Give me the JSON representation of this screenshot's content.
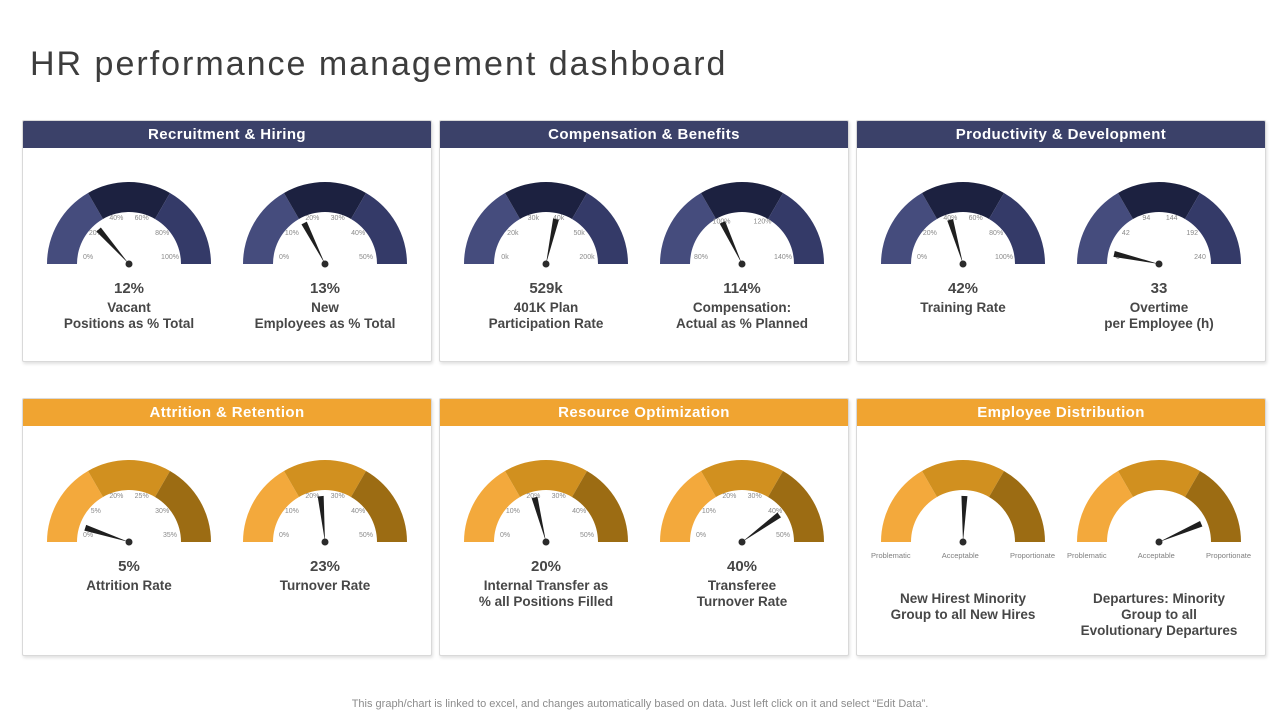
{
  "title": "HR performance management dashboard",
  "footer": "This graph/chart is linked to excel, and changes automatically based on data. Just left click on it and select “Edit Data”.",
  "colors": {
    "blue_header": "#3B4169",
    "orange_header": "#F0A431",
    "blue_segments": [
      "#454C7D",
      "#1C2140",
      "#343A68"
    ],
    "orange_segments": [
      "#F3A93C",
      "#D1901F",
      "#9C6C13"
    ],
    "needle": "#1F1F1F",
    "tick_text": "#8A8A8A",
    "value_text": "#474747"
  },
  "chart_data": {
    "type": "gauge",
    "layout": "2 rows x 3 panels, each panel has 2 semicircular gauges with 3 equal colored segments",
    "panels": [
      {
        "id": "recruitment-hiring",
        "title": "Recruitment & Hiring",
        "theme": "blue",
        "gauges": [
          {
            "ticks": [
              "0%",
              "20%",
              "40%",
              "60%",
              "80%",
              "100%"
            ],
            "value": "12%",
            "needle_fraction": 0.27,
            "label_lines": [
              "Vacant",
              "Positions as % Total"
            ]
          },
          {
            "ticks": [
              "0%",
              "10%",
              "20%",
              "30%",
              "40%",
              "50%"
            ],
            "value": "13%",
            "needle_fraction": 0.35,
            "label_lines": [
              "New",
              "Employees as % Total"
            ]
          }
        ]
      },
      {
        "id": "compensation-benefits",
        "title": "Compensation & Benefits",
        "theme": "blue",
        "gauges": [
          {
            "ticks": [
              "0k",
              "20k",
              "30k",
              "40k",
              "50k",
              "200k"
            ],
            "value": "529k",
            "needle_fraction": 0.57,
            "label_lines": [
              "401K Plan",
              "Participation Rate"
            ]
          },
          {
            "ticks": [
              "80%",
              "100%",
              "120%",
              "140%"
            ],
            "value": "114%",
            "needle_fraction": 0.36,
            "label_lines": [
              "Compensation:",
              "Actual as % Planned"
            ]
          }
        ]
      },
      {
        "id": "productivity-development",
        "title": "Productivity & Development",
        "theme": "blue",
        "gauges": [
          {
            "ticks": [
              "0%",
              "20%",
              "40%",
              "60%",
              "80%",
              "100%"
            ],
            "value": "42%",
            "needle_fraction": 0.41,
            "label_lines": [
              "Training Rate"
            ]
          },
          {
            "ticks": [
              "0",
              "42",
              "94",
              "144",
              "192",
              "240"
            ],
            "value": "33",
            "needle_fraction": 0.07,
            "label_lines": [
              "Overtime",
              "per Employee (h)"
            ]
          }
        ]
      },
      {
        "id": "attrition-retention",
        "title": "Attrition & Retention",
        "theme": "orange",
        "gauges": [
          {
            "ticks": [
              "0%",
              "5%",
              "20%",
              "25%",
              "30%",
              "35%"
            ],
            "value": "5%",
            "needle_fraction": 0.1,
            "label_lines": [
              "Attrition Rate"
            ]
          },
          {
            "ticks": [
              "0%",
              "10%",
              "20%",
              "30%",
              "40%",
              "50%"
            ],
            "value": "23%",
            "needle_fraction": 0.47,
            "label_lines": [
              "Turnover Rate"
            ]
          }
        ]
      },
      {
        "id": "resource-optimization",
        "title": "Resource Optimization",
        "theme": "orange",
        "gauges": [
          {
            "ticks": [
              "0%",
              "10%",
              "20%",
              "30%",
              "40%",
              "50%"
            ],
            "value": "20%",
            "needle_fraction": 0.42,
            "label_lines": [
              "Internal Transfer as",
              "% all Positions Filled"
            ]
          },
          {
            "ticks": [
              "0%",
              "10%",
              "20%",
              "30%",
              "40%",
              "50%"
            ],
            "value": "40%",
            "needle_fraction": 0.8,
            "label_lines": [
              "Transferee",
              "Turnover Rate"
            ]
          }
        ]
      },
      {
        "id": "employee-distribution",
        "title": "Employee Distribution",
        "theme": "orange",
        "gauges": [
          {
            "ticks": [],
            "below_labels": [
              "Problematic",
              "Acceptable",
              "Proportionate"
            ],
            "value": "",
            "needle_fraction": 0.51,
            "label_lines": [
              "New Hirest Minority",
              "Group to all New Hires"
            ]
          },
          {
            "ticks": [],
            "below_labels": [
              "Problematic",
              "Acceptable",
              "Proportionate"
            ],
            "value": "",
            "needle_fraction": 0.87,
            "label_lines": [
              "Departures: Minority",
              "Group to all",
              "Evolutionary Departures"
            ]
          }
        ]
      }
    ]
  }
}
